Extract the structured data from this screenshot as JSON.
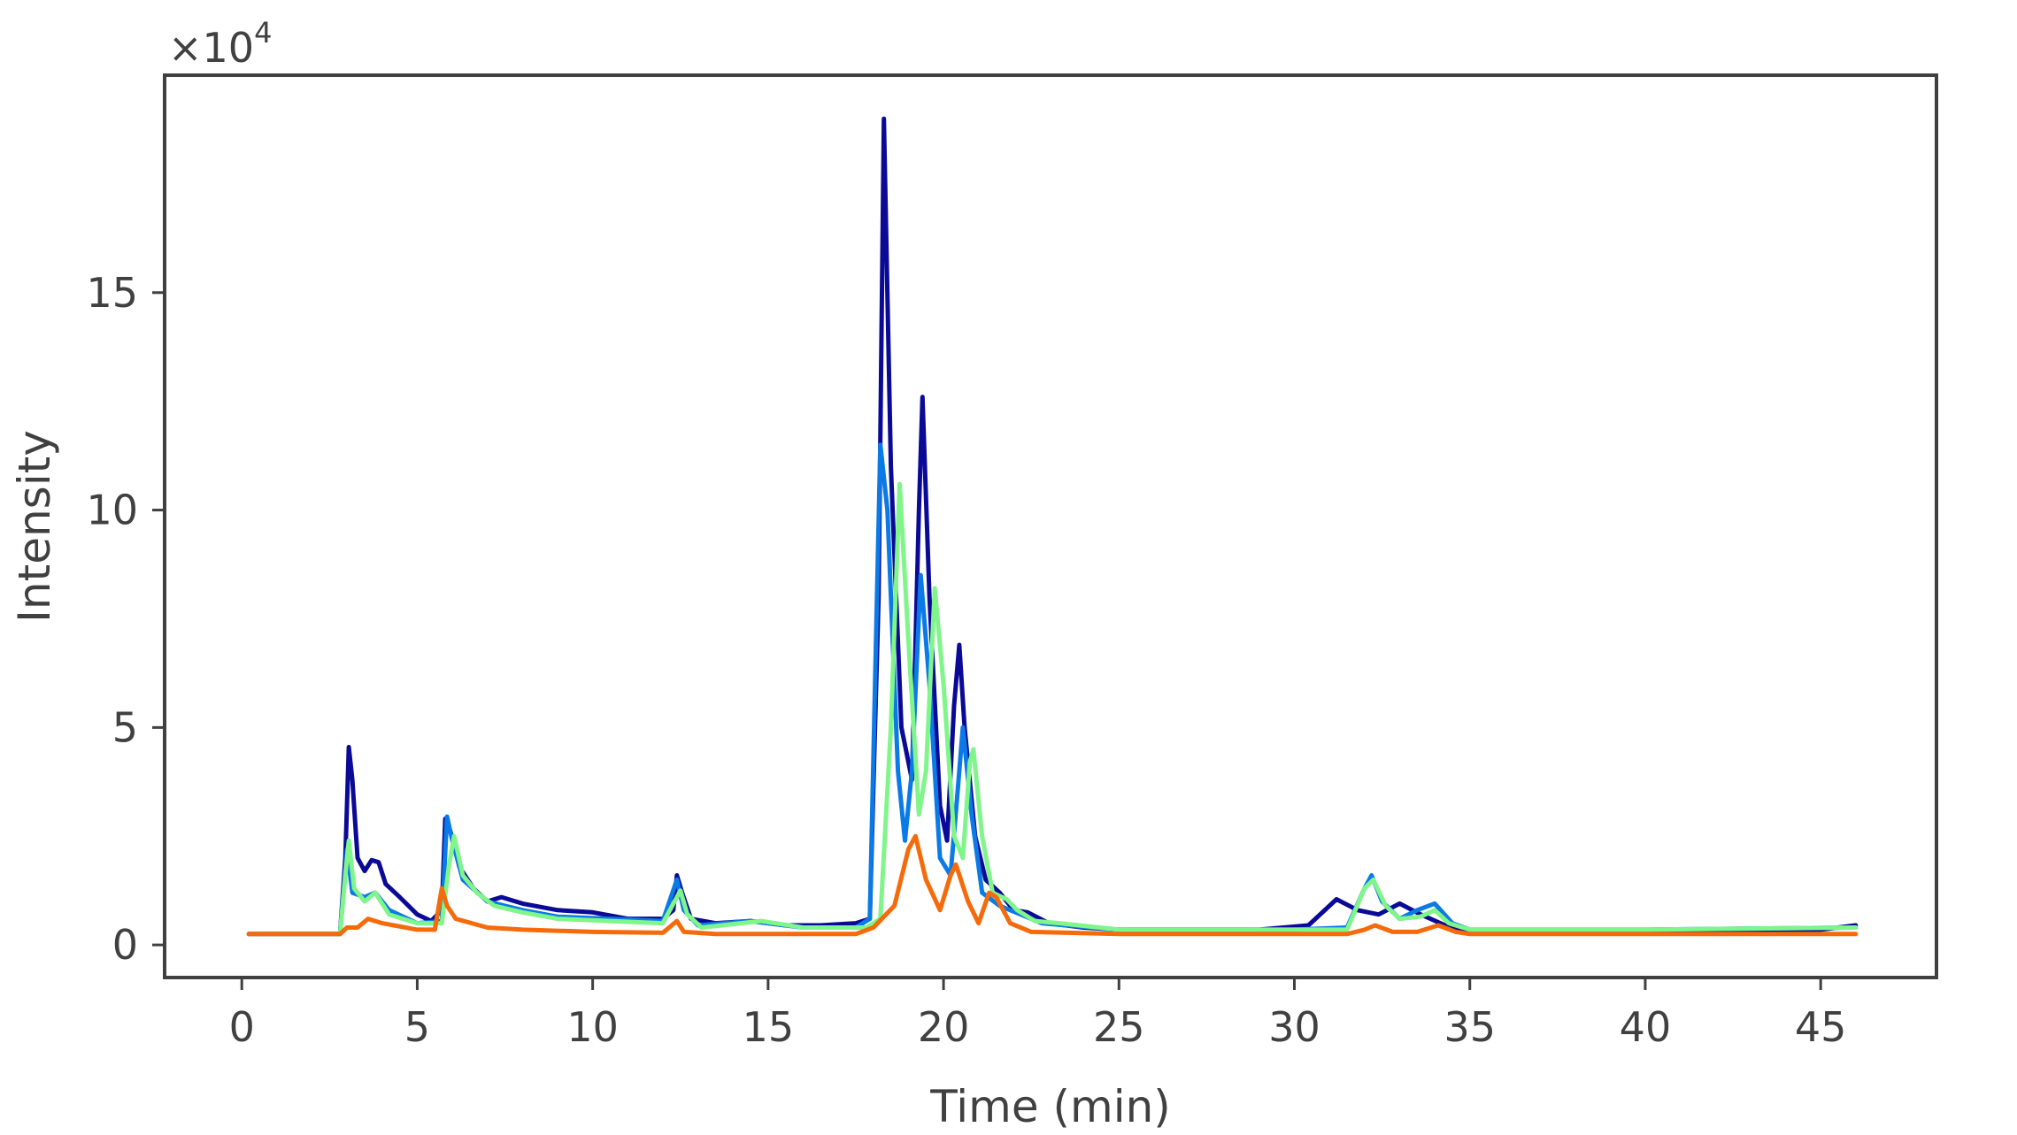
{
  "chart_data": {
    "type": "line",
    "xlabel": "Time (min)",
    "ylabel": "Intensity",
    "y_multiplier": "×10",
    "y_multiplier_exp": "4",
    "xlim": [
      -2.2,
      48.3
    ],
    "ylim": [
      -0.75,
      20.0
    ],
    "xticks": [
      0,
      5,
      10,
      15,
      20,
      25,
      30,
      35,
      40,
      45
    ],
    "yticks": [
      0,
      5,
      10,
      15
    ],
    "grid": false,
    "legend": "none",
    "series": [
      {
        "color": "#0a0a96",
        "points": [
          [
            0.2,
            0.25
          ],
          [
            2.8,
            0.25
          ],
          [
            2.95,
            2.0
          ],
          [
            3.05,
            4.55
          ],
          [
            3.15,
            3.8
          ],
          [
            3.3,
            2.0
          ],
          [
            3.5,
            1.7
          ],
          [
            3.7,
            1.95
          ],
          [
            3.9,
            1.9
          ],
          [
            4.1,
            1.4
          ],
          [
            4.5,
            1.1
          ],
          [
            5.0,
            0.7
          ],
          [
            5.4,
            0.55
          ],
          [
            5.7,
            0.8
          ],
          [
            5.8,
            2.9
          ],
          [
            5.95,
            2.6
          ],
          [
            6.2,
            1.8
          ],
          [
            6.6,
            1.3
          ],
          [
            7.0,
            1.0
          ],
          [
            7.4,
            1.1
          ],
          [
            8.0,
            0.95
          ],
          [
            9.0,
            0.8
          ],
          [
            10.0,
            0.75
          ],
          [
            11.0,
            0.6
          ],
          [
            12.0,
            0.6
          ],
          [
            12.3,
            0.8
          ],
          [
            12.4,
            1.6
          ],
          [
            12.55,
            1.2
          ],
          [
            12.8,
            0.6
          ],
          [
            13.5,
            0.5
          ],
          [
            14.5,
            0.55
          ],
          [
            15.5,
            0.45
          ],
          [
            16.5,
            0.45
          ],
          [
            17.5,
            0.5
          ],
          [
            17.9,
            0.6
          ],
          [
            18.15,
            8.0
          ],
          [
            18.3,
            19.0
          ],
          [
            18.5,
            11.0
          ],
          [
            18.8,
            5.0
          ],
          [
            19.1,
            3.8
          ],
          [
            19.3,
            10.0
          ],
          [
            19.4,
            12.6
          ],
          [
            19.6,
            8.0
          ],
          [
            19.9,
            3.2
          ],
          [
            20.1,
            2.4
          ],
          [
            20.3,
            5.5
          ],
          [
            20.45,
            6.9
          ],
          [
            20.6,
            5.0
          ],
          [
            20.9,
            2.5
          ],
          [
            21.2,
            1.5
          ],
          [
            21.6,
            1.2
          ],
          [
            22.0,
            0.8
          ],
          [
            22.4,
            0.75
          ],
          [
            23.0,
            0.5
          ],
          [
            24.0,
            0.4
          ],
          [
            25.0,
            0.35
          ],
          [
            27.0,
            0.35
          ],
          [
            29.0,
            0.35
          ],
          [
            30.4,
            0.45
          ],
          [
            31.2,
            1.05
          ],
          [
            31.8,
            0.8
          ],
          [
            32.4,
            0.7
          ],
          [
            33.0,
            0.95
          ],
          [
            33.6,
            0.7
          ],
          [
            34.3,
            0.45
          ],
          [
            35.0,
            0.3
          ],
          [
            38.0,
            0.3
          ],
          [
            42.0,
            0.3
          ],
          [
            44.5,
            0.3
          ],
          [
            46.0,
            0.45
          ]
        ]
      },
      {
        "color": "#0a7ae6",
        "points": [
          [
            0.2,
            0.25
          ],
          [
            2.8,
            0.25
          ],
          [
            3.0,
            2.2
          ],
          [
            3.15,
            1.2
          ],
          [
            3.5,
            1.1
          ],
          [
            3.8,
            1.2
          ],
          [
            4.2,
            0.8
          ],
          [
            5.0,
            0.5
          ],
          [
            5.7,
            0.55
          ],
          [
            5.85,
            2.95
          ],
          [
            6.0,
            2.4
          ],
          [
            6.3,
            1.5
          ],
          [
            7.0,
            1.0
          ],
          [
            8.0,
            0.8
          ],
          [
            9.0,
            0.65
          ],
          [
            10.5,
            0.6
          ],
          [
            12.0,
            0.55
          ],
          [
            12.4,
            1.5
          ],
          [
            12.6,
            0.8
          ],
          [
            13.0,
            0.45
          ],
          [
            14.5,
            0.55
          ],
          [
            16.0,
            0.4
          ],
          [
            17.5,
            0.4
          ],
          [
            17.9,
            0.6
          ],
          [
            18.2,
            11.5
          ],
          [
            18.4,
            10.0
          ],
          [
            18.7,
            4.0
          ],
          [
            18.9,
            2.4
          ],
          [
            19.1,
            4.0
          ],
          [
            19.35,
            8.5
          ],
          [
            19.6,
            6.0
          ],
          [
            19.9,
            2.0
          ],
          [
            20.2,
            1.6
          ],
          [
            20.4,
            3.5
          ],
          [
            20.55,
            5.0
          ],
          [
            20.8,
            3.0
          ],
          [
            21.1,
            1.2
          ],
          [
            21.6,
            0.9
          ],
          [
            22.2,
            0.7
          ],
          [
            22.8,
            0.5
          ],
          [
            23.5,
            0.45
          ],
          [
            25.0,
            0.35
          ],
          [
            30.0,
            0.35
          ],
          [
            31.5,
            0.4
          ],
          [
            32.0,
            1.3
          ],
          [
            32.2,
            1.6
          ],
          [
            32.5,
            1.0
          ],
          [
            33.0,
            0.6
          ],
          [
            33.5,
            0.8
          ],
          [
            34.0,
            0.95
          ],
          [
            34.5,
            0.5
          ],
          [
            35.0,
            0.35
          ],
          [
            40.0,
            0.35
          ],
          [
            46.0,
            0.4
          ]
        ]
      },
      {
        "color": "#7ff58a",
        "points": [
          [
            0.2,
            0.25
          ],
          [
            2.8,
            0.25
          ],
          [
            2.95,
            1.6
          ],
          [
            3.05,
            2.4
          ],
          [
            3.2,
            1.3
          ],
          [
            3.5,
            1.0
          ],
          [
            3.8,
            1.2
          ],
          [
            4.2,
            0.7
          ],
          [
            5.0,
            0.5
          ],
          [
            5.7,
            0.5
          ],
          [
            5.9,
            1.8
          ],
          [
            6.05,
            2.5
          ],
          [
            6.3,
            1.6
          ],
          [
            6.7,
            1.2
          ],
          [
            7.2,
            0.9
          ],
          [
            8.0,
            0.75
          ],
          [
            9.0,
            0.6
          ],
          [
            10.5,
            0.55
          ],
          [
            12.0,
            0.5
          ],
          [
            12.5,
            1.25
          ],
          [
            12.7,
            0.7
          ],
          [
            13.1,
            0.4
          ],
          [
            14.8,
            0.55
          ],
          [
            16.0,
            0.4
          ],
          [
            17.8,
            0.4
          ],
          [
            18.2,
            0.6
          ],
          [
            18.5,
            5.0
          ],
          [
            18.75,
            10.6
          ],
          [
            19.0,
            7.0
          ],
          [
            19.3,
            3.0
          ],
          [
            19.5,
            4.0
          ],
          [
            19.75,
            8.2
          ],
          [
            20.0,
            6.0
          ],
          [
            20.3,
            2.5
          ],
          [
            20.55,
            2.0
          ],
          [
            20.75,
            4.2
          ],
          [
            20.85,
            4.5
          ],
          [
            21.1,
            2.5
          ],
          [
            21.4,
            1.2
          ],
          [
            21.8,
            1.05
          ],
          [
            22.1,
            0.8
          ],
          [
            22.6,
            0.55
          ],
          [
            23.3,
            0.5
          ],
          [
            25.0,
            0.35
          ],
          [
            30.0,
            0.35
          ],
          [
            31.5,
            0.35
          ],
          [
            32.0,
            1.3
          ],
          [
            32.25,
            1.5
          ],
          [
            32.6,
            0.9
          ],
          [
            33.0,
            0.6
          ],
          [
            33.6,
            0.65
          ],
          [
            34.0,
            0.8
          ],
          [
            34.4,
            0.5
          ],
          [
            35.0,
            0.35
          ],
          [
            40.0,
            0.35
          ],
          [
            46.0,
            0.4
          ]
        ]
      },
      {
        "color": "#f56a0a",
        "points": [
          [
            0.2,
            0.25
          ],
          [
            2.8,
            0.25
          ],
          [
            3.0,
            0.4
          ],
          [
            3.3,
            0.4
          ],
          [
            3.6,
            0.6
          ],
          [
            4.0,
            0.5
          ],
          [
            5.0,
            0.35
          ],
          [
            5.5,
            0.35
          ],
          [
            5.7,
            1.3
          ],
          [
            5.85,
            0.9
          ],
          [
            6.1,
            0.6
          ],
          [
            7.0,
            0.4
          ],
          [
            8.0,
            0.35
          ],
          [
            10.0,
            0.3
          ],
          [
            12.0,
            0.28
          ],
          [
            12.4,
            0.55
          ],
          [
            12.6,
            0.3
          ],
          [
            13.5,
            0.25
          ],
          [
            17.5,
            0.25
          ],
          [
            18.0,
            0.4
          ],
          [
            18.6,
            0.9
          ],
          [
            19.0,
            2.2
          ],
          [
            19.2,
            2.5
          ],
          [
            19.5,
            1.5
          ],
          [
            19.9,
            0.8
          ],
          [
            20.2,
            1.6
          ],
          [
            20.35,
            1.85
          ],
          [
            20.7,
            1.0
          ],
          [
            21.0,
            0.5
          ],
          [
            21.3,
            1.2
          ],
          [
            21.5,
            1.1
          ],
          [
            21.9,
            0.5
          ],
          [
            22.5,
            0.3
          ],
          [
            25.0,
            0.25
          ],
          [
            30.0,
            0.25
          ],
          [
            31.5,
            0.25
          ],
          [
            32.0,
            0.35
          ],
          [
            32.3,
            0.45
          ],
          [
            32.8,
            0.3
          ],
          [
            33.5,
            0.3
          ],
          [
            34.1,
            0.45
          ],
          [
            34.6,
            0.3
          ],
          [
            35.0,
            0.25
          ],
          [
            40.0,
            0.25
          ],
          [
            46.0,
            0.25
          ]
        ]
      }
    ]
  }
}
